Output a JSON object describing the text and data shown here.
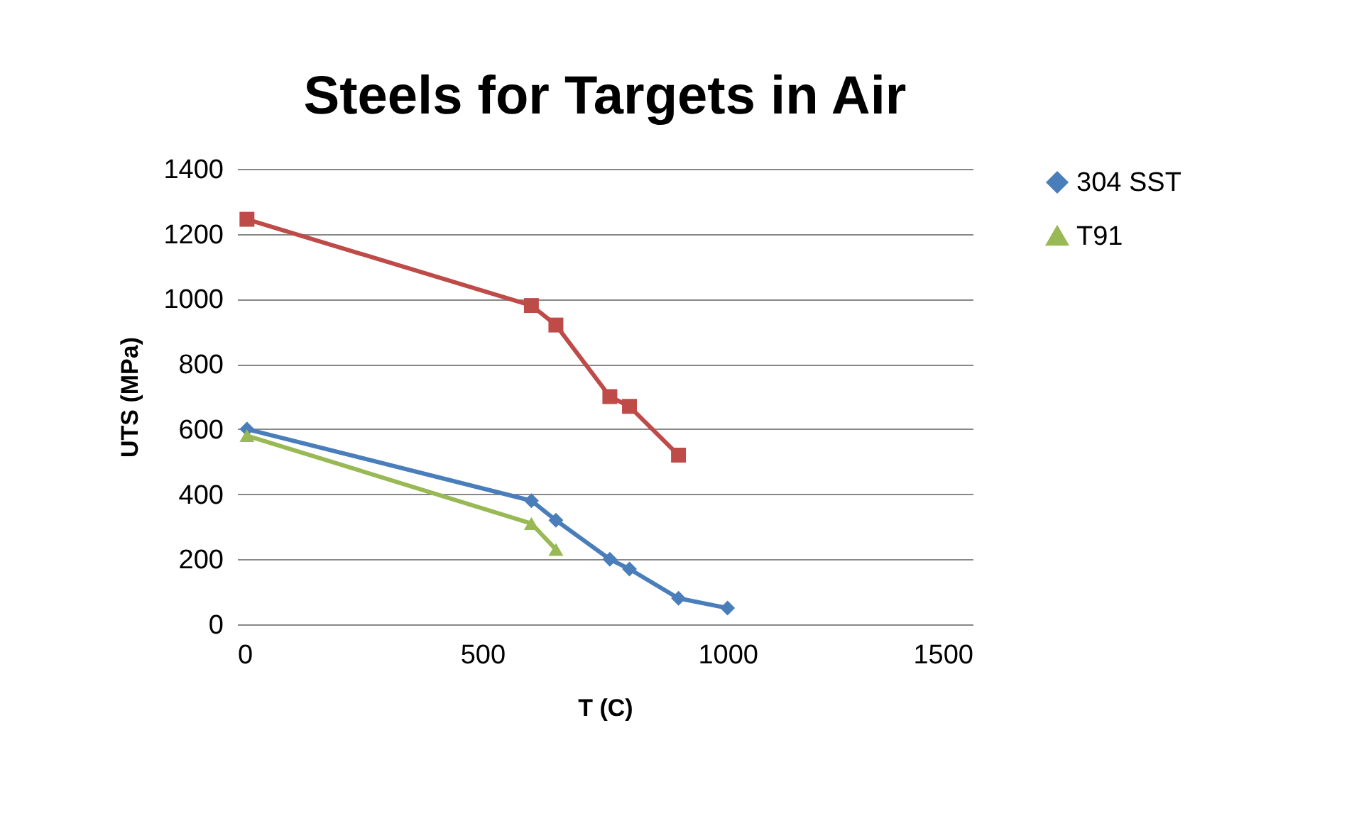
{
  "chart_data": {
    "type": "line",
    "title": "Steels for Targets in Air",
    "xlabel": "T (C)",
    "ylabel": "UTS (MPa)",
    "xlim": [
      0,
      1500
    ],
    "xticks": [
      0,
      500,
      1000,
      1500
    ],
    "ylim": [
      0,
      1400
    ],
    "yticks": [
      0,
      200,
      400,
      600,
      800,
      1000,
      1200,
      1400
    ],
    "grid": "y",
    "legend": "right",
    "series": [
      {
        "name": "304 SST",
        "color": "#4a7ebb",
        "marker": "diamond",
        "x": [
          20,
          600,
          650,
          760,
          800,
          900,
          1000
        ],
        "values": [
          600,
          380,
          320,
          200,
          170,
          80,
          50
        ]
      },
      {
        "color": "#be4b48",
        "marker": "square",
        "x": [
          20,
          600,
          650,
          760,
          800,
          900
        ],
        "values": [
          1245,
          980,
          920,
          700,
          670,
          520
        ]
      },
      {
        "name": "T91",
        "color": "#98b954",
        "marker": "triangle",
        "x": [
          20,
          600,
          650
        ],
        "values": [
          580,
          310,
          230
        ]
      }
    ]
  }
}
